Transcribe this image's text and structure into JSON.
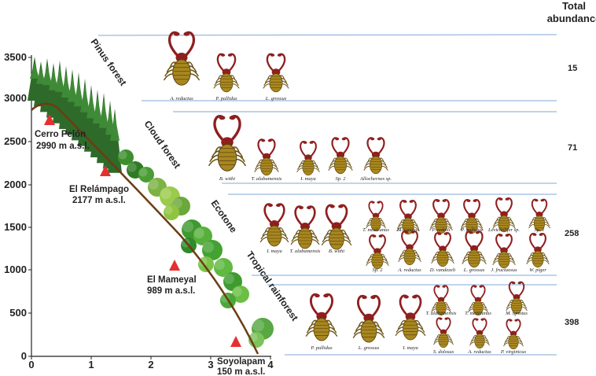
{
  "header": {
    "total_line1": "Total",
    "total_line2": "abundance"
  },
  "axis": {
    "y_ticks": [
      "3500",
      "3000",
      "2500",
      "2000",
      "1500",
      "1000",
      "500",
      "0"
    ],
    "x_ticks": [
      "0",
      "1",
      "2",
      "3",
      "4"
    ]
  },
  "sites": [
    {
      "name": "Cerro Pelón",
      "elevation": "2990 m a.s.l."
    },
    {
      "name": "El Relámpago",
      "elevation": "2177 m a.s.l."
    },
    {
      "name": "El Mameyal",
      "elevation": "989 m a.s.l."
    },
    {
      "name": "Soyolapam",
      "elevation": "150 m a.s.l."
    }
  ],
  "zones": [
    {
      "name": "Pinus forest",
      "abundance": "15",
      "species": [
        "A. reductus",
        "P. pallidus",
        "L. grossus"
      ]
    },
    {
      "name": "Cloud forest",
      "abundance": "71",
      "species": [
        "B. withi",
        "T. alabamensis",
        "I. maya",
        "Sp. 2",
        "Allochernes sp."
      ]
    },
    {
      "name": "Ecotone",
      "abundance": "258",
      "species": [
        "I. maya",
        "T. alabamensis",
        "B. withi",
        "T. mexicanus",
        "M. ignotus",
        "P. redelli",
        "P. pallidus",
        "Levichelifer sp.",
        "Sp. 1",
        "Sp. 2",
        "A. reductus",
        "D. vandezeli",
        "L. grossus",
        "J. fructuosus",
        "W. piger"
      ]
    },
    {
      "name": "Tropical rainforest",
      "abundance": "398",
      "species": [
        "P. pallidus",
        "L. grossus",
        "I. maya",
        "T. alabamensis",
        "T. mexicanus",
        "M. ignotus",
        "S. dolosus",
        "A. reductus",
        "P. virginicus"
      ]
    }
  ],
  "colors": {
    "mountain": "#6b3d12",
    "marker": "#e53030",
    "pine": "#2e6b2a",
    "band_line": "#7fa8d6",
    "chela": "#8f1f1f",
    "body": "#a9871f"
  }
}
